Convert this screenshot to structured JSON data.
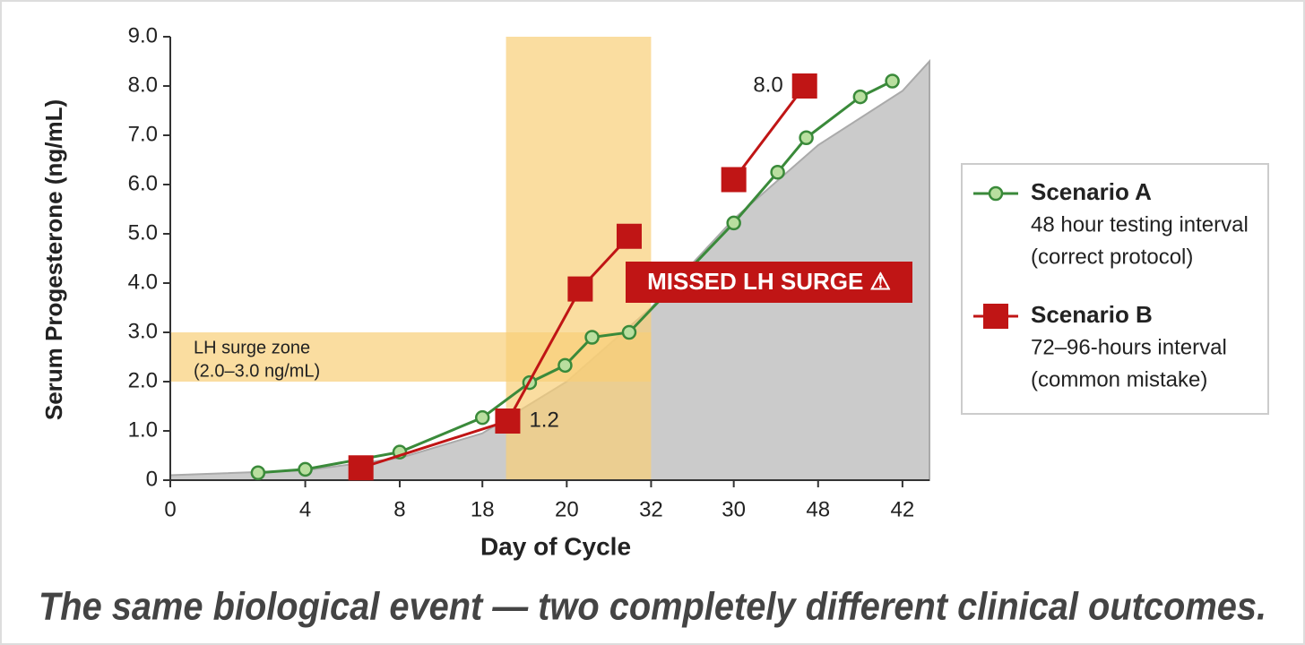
{
  "chart_data": {
    "type": "line",
    "xlabel": "Day of Cycle",
    "ylabel": "Serum Progesterone (ng/mL)",
    "caption": "The same biological event — two completely different clinical outcomes.",
    "xlim": [
      0,
      45
    ],
    "ylim": [
      0,
      9
    ],
    "xticks": [
      0,
      {
        "value": 8.0,
        "label": "4"
      },
      {
        "value": 13.6,
        "label": "8"
      },
      {
        "value": 18.5,
        "label": "18"
      },
      {
        "value": 23.5,
        "label": "20"
      },
      {
        "value": 28.5,
        "label": "32"
      },
      {
        "value": 33.4,
        "label": "30"
      },
      {
        "value": 38.4,
        "label": "48"
      },
      {
        "value": 43.4,
        "label": "42"
      }
    ],
    "yticks": [
      0,
      {
        "value": 1,
        "label": "1.0"
      },
      {
        "value": 2,
        "label": "2.0"
      },
      {
        "value": 3,
        "label": "3.0"
      },
      {
        "value": 4,
        "label": "4.0"
      },
      {
        "value": 5,
        "label": "5.0"
      },
      {
        "value": 6,
        "label": "6.0"
      },
      {
        "value": 7,
        "label": "7.0"
      },
      {
        "value": 8,
        "label": "8.0"
      },
      {
        "value": 9,
        "label": "9.0"
      }
    ],
    "curve": {
      "color": "#cbcbcb",
      "x": [
        0,
        8.0,
        13.6,
        18.5,
        23.5,
        28.5,
        33.4,
        38.4,
        43.4,
        45
      ],
      "values": [
        0.1,
        0.2,
        0.45,
        0.95,
        2.0,
        3.5,
        5.3,
        6.8,
        7.9,
        8.5
      ]
    },
    "bands": [
      {
        "axis": "x",
        "range": [
          19.9,
          28.5
        ],
        "color": "#f8cf78"
      },
      {
        "axis": "y",
        "range": [
          2,
          3
        ],
        "xrange": [
          0,
          28.5
        ],
        "color": "#f8cf78",
        "label": [
          "LH surge zone",
          "(2.0–3.0 ng/mL)"
        ]
      }
    ],
    "annotation": "MISSED LH SURGE ⚠",
    "series": [
      {
        "name": "Scenario A",
        "description": [
          "48 hour testing interval",
          "(correct protocol)"
        ],
        "color": "#3a8a3a",
        "marker": "circle",
        "x": [
          5.2,
          8.0,
          13.6,
          18.5,
          21.3,
          23.4,
          25.0,
          27.2,
          33.4,
          36.0,
          37.7,
          40.9,
          42.8
        ],
        "values": [
          0.15,
          0.22,
          0.57,
          1.27,
          1.98,
          2.33,
          2.9,
          3.0,
          5.22,
          6.25,
          6.95,
          7.78,
          8.1
        ]
      },
      {
        "name": "Scenario B",
        "description": [
          "72–96-hours interval",
          "(common mistake)"
        ],
        "color": "#c01515",
        "marker": "square",
        "x": [
          11.3,
          20.0,
          24.3,
          27.2,
          null,
          33.4,
          37.6
        ],
        "values": [
          0.25,
          1.2,
          3.88,
          4.95,
          null,
          6.1,
          8.0
        ],
        "value_labels": [
          null,
          "1.2",
          null,
          null,
          null,
          null,
          "8.0"
        ]
      }
    ],
    "legend": "right",
    "grid": false
  }
}
